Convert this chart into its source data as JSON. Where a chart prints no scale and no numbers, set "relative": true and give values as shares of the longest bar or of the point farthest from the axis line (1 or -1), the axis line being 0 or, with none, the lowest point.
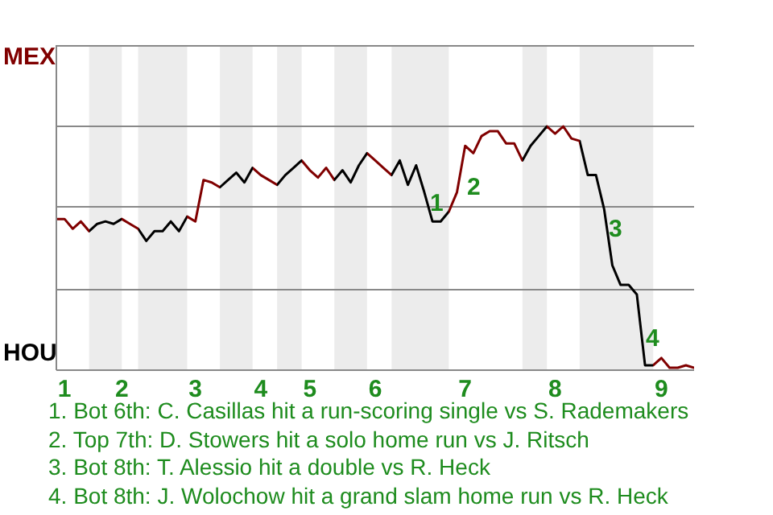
{
  "chart_data": {
    "type": "line",
    "relative": true,
    "categories": [
      null,
      "1",
      null,
      null,
      null,
      null,
      null,
      null,
      "2",
      null,
      null,
      null,
      null,
      null,
      null,
      null,
      null,
      "3",
      null,
      null,
      null,
      null,
      null,
      null,
      null,
      "4",
      null,
      null,
      null,
      null,
      null,
      "5",
      null,
      null,
      null,
      null,
      null,
      null,
      null,
      "6",
      null,
      null,
      null,
      null,
      null,
      null,
      null,
      null,
      null,
      null,
      "7",
      null,
      null,
      null,
      null,
      null,
      null,
      null,
      null,
      null,
      null,
      "8",
      null,
      null,
      null,
      null,
      null,
      null,
      null,
      null,
      null,
      null,
      null,
      null,
      "9",
      null,
      null,
      null,
      null
    ],
    "series": [
      {
        "values": [
          0.62,
          0.62,
          0.58,
          0.61,
          0.57,
          0.6,
          0.61,
          0.6,
          0.62,
          0.6,
          0.58,
          0.53,
          0.57,
          0.57,
          0.61,
          0.57,
          0.63,
          0.61,
          0.78,
          0.77,
          0.75,
          0.78,
          0.81,
          0.77,
          0.83,
          0.8,
          0.78,
          0.76,
          0.8,
          0.83,
          0.86,
          0.82,
          0.79,
          0.83,
          0.78,
          0.82,
          0.77,
          0.84,
          0.89,
          0.86,
          0.83,
          0.8,
          0.86,
          0.76,
          0.84,
          0.73,
          0.61,
          0.61,
          0.65,
          0.73,
          0.92,
          0.89,
          0.96,
          0.98,
          0.98,
          0.93,
          0.93,
          0.86,
          0.92,
          0.96,
          1,
          0.97,
          1,
          0.95,
          0.94,
          0.8,
          0.8,
          0.66,
          0.43,
          0.35,
          0.35,
          0.31,
          0.02,
          0.02,
          0.05,
          0.01,
          0.01,
          0.02,
          0.01
        ],
        "colors": [
          "#800000",
          "#800000",
          "#800000",
          "#800000",
          "#000000",
          "#000000",
          "#000000",
          "#000000",
          "#800000",
          "#800000",
          "#000000",
          "#000000",
          "#000000",
          "#000000",
          "#000000",
          "#000000",
          "#800000",
          "#800000",
          "#800000",
          "#800000",
          "#000000",
          "#000000",
          "#000000",
          "#000000",
          "#800000",
          "#800000",
          "#800000",
          "#000000",
          "#000000",
          "#000000",
          "#800000",
          "#800000",
          "#800000",
          "#800000",
          "#000000",
          "#000000",
          "#000000",
          "#000000",
          "#800000",
          "#800000",
          "#800000",
          "#000000",
          "#000000",
          "#000000",
          "#000000",
          "#000000",
          "#000000",
          "#000000",
          "#800000",
          "#800000",
          "#800000",
          "#800000",
          "#800000",
          "#800000",
          "#800000",
          "#800000",
          "#800000",
          "#000000",
          "#000000",
          "#000000",
          "#800000",
          "#800000",
          "#800000",
          "#800000",
          "#000000",
          "#000000",
          "#000000",
          "#000000",
          "#000000",
          "#000000",
          "#000000",
          "#000000",
          "#000000",
          "#800000",
          "#800000",
          "#800000",
          "#800000",
          "#800000",
          "#800000"
        ]
      }
    ],
    "marker": "none",
    "ref_lines": [
      {
        "axis": "y",
        "value": 0.33,
        "color": "#888888"
      },
      {
        "axis": "y",
        "value": 0.67,
        "color": "#888888"
      },
      {
        "axis": "y",
        "value": 1,
        "color": "#888888"
      },
      {
        "axis": "y",
        "value": 1.33,
        "color": "#888888"
      }
    ],
    "annotations": [
      "MEX",
      "HOU",
      "1",
      "2",
      "3",
      "4",
      "1. Bot 6th: C. Casillas hit a run-scoring single vs S. Rademakers",
      "2. Top 7th: D. Stowers hit a solo home run vs J. Ritsch",
      "3. Bot 8th: T. Alessio hit a double vs R. Heck",
      "4. Bot 8th: J. Wolochow hit a grand slam home run vs R. Heck"
    ]
  }
}
